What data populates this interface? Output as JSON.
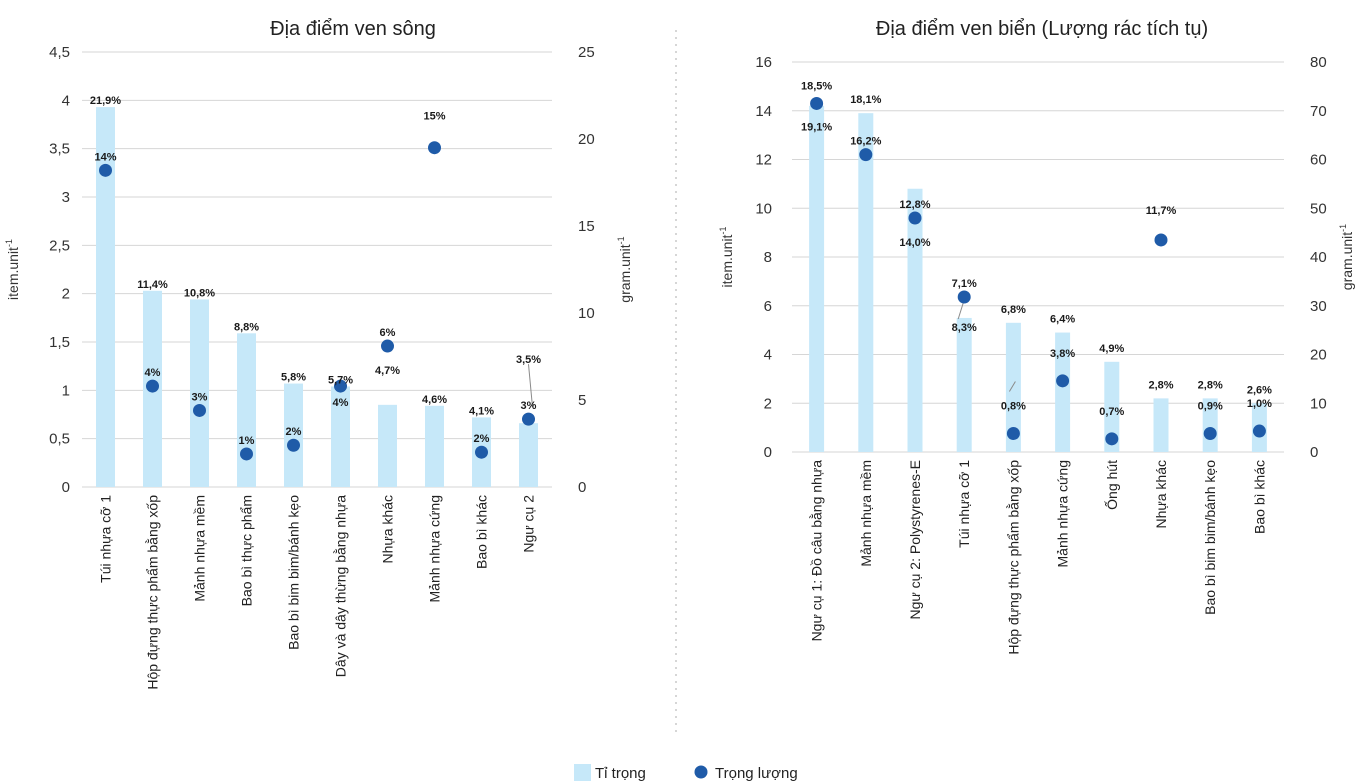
{
  "colors": {
    "bar": "#c6e8f9",
    "dot": "#1f5ba8",
    "grid": "#d6d6d6",
    "leader": "#8a8a8a",
    "divider": "#c8c8c8"
  },
  "legend": {
    "bar_label": "Tỉ trọng",
    "dot_label": "Trọng lượng"
  },
  "chart_data": [
    {
      "type": "bar",
      "title": "Địa điểm ven sông",
      "ylabel": "item.unit",
      "ylabel_sup": "-1",
      "y2label": "gram.unit",
      "y2label_sup": "-1",
      "ylim": [
        0,
        4.5
      ],
      "yticks": [
        "0",
        "0,5",
        "1",
        "1,5",
        "2",
        "2,5",
        "3",
        "3,5",
        "4",
        "4,5"
      ],
      "y2lim": [
        0,
        25
      ],
      "y2ticks": [
        "0",
        "5",
        "10",
        "15",
        "20",
        "25"
      ],
      "categories": [
        "Túi nhựa cỡ 1",
        "Hộp đựng thực phẩm bằng xốp",
        "Mảnh nhựa mềm",
        "Bao bì thực phẩm",
        "Bao bì bim bim/bánh kẹo",
        "Dây và dây thừng bằng nhựa",
        "Nhựa khác",
        "Mảnh nhựa cứng",
        "Bao bì khác",
        "Ngư cụ 2"
      ],
      "series": [
        {
          "name": "Tỉ trọng",
          "axis": "left",
          "values": [
            3.93,
            2.03,
            1.94,
            1.59,
            1.07,
            1.04,
            0.85,
            0.84,
            0.72,
            0.66
          ],
          "labels": [
            "21,9%",
            "11,4%",
            "10,8%",
            "8,8%",
            "5,8%",
            "5,7%",
            "4,7%",
            "4,6%",
            "4,1%",
            "3,5%"
          ]
        },
        {
          "name": "Trọng lượng",
          "axis": "right",
          "values": [
            18.2,
            5.8,
            4.4,
            1.9,
            2.4,
            5.8,
            8.1,
            19.5,
            2.0,
            3.9
          ],
          "labels": [
            "14%",
            "4%",
            "3%",
            "1%",
            "2%",
            "4%",
            "6%",
            "15%",
            "2%",
            "3%"
          ]
        }
      ]
    },
    {
      "type": "bar",
      "title": "Địa điểm ven biển (Lượng rác tích tụ)",
      "ylabel": "item.unit",
      "ylabel_sup": "-1",
      "y2label": "gram.unit",
      "y2label_sup": "-1",
      "ylim": [
        0,
        16
      ],
      "yticks": [
        "0",
        "2",
        "4",
        "6",
        "8",
        "10",
        "12",
        "14",
        "16"
      ],
      "y2lim": [
        0,
        80
      ],
      "y2ticks": [
        "0",
        "10",
        "20",
        "30",
        "40",
        "50",
        "60",
        "70",
        "80"
      ],
      "categories": [
        "Ngư cụ 1: Đồ câu bằng nhựa",
        "Mảnh nhựa mềm",
        "Ngư cụ 2: Polystyrenes-E",
        "Túi nhựa cỡ 1",
        "Hộp đựng thực phẩm bằng xốp",
        "Mảnh nhựa cứng",
        "Ống hút",
        "Nhựa khác",
        "Bao bì bim bim/bánh kẹo",
        "Bao bì khác"
      ],
      "series": [
        {
          "name": "Tỉ trọng",
          "axis": "left",
          "values": [
            14.2,
            13.9,
            10.8,
            5.5,
            5.3,
            4.9,
            3.7,
            2.2,
            2.2,
            2.0
          ],
          "labels": [
            "19,1%",
            "18,1%",
            "14,0%",
            "8,3%",
            "6,8%",
            "6,4%",
            "4,9%",
            "2,8%",
            "2,8%",
            "2,6%"
          ]
        },
        {
          "name": "Trọng lượng",
          "axis": "right",
          "values": [
            71.5,
            61.0,
            48.0,
            31.8,
            3.8,
            14.6,
            2.7,
            43.5,
            3.8,
            4.3
          ],
          "labels": [
            "18,5%",
            "16,2%",
            "12,8%",
            "7,1%",
            "0,8%",
            "3,8%",
            "0,7%",
            "11,7%",
            "0,9%",
            "1,0%"
          ]
        }
      ]
    }
  ]
}
